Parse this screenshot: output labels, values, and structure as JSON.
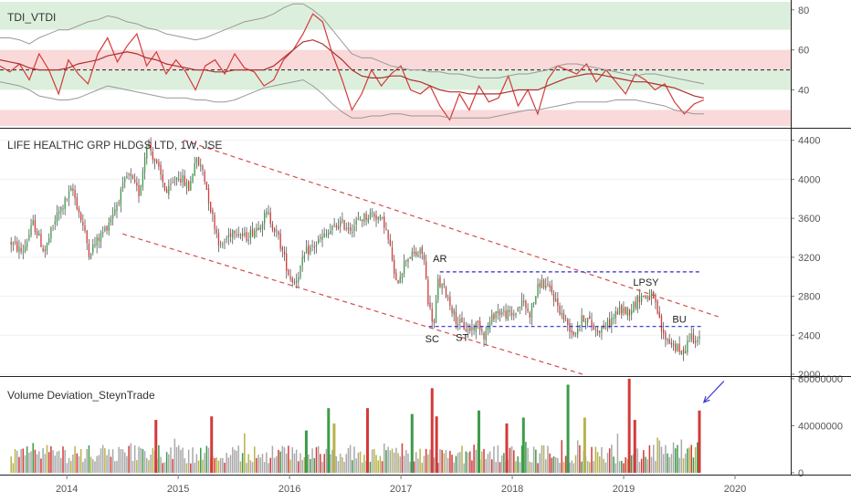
{
  "colors": {
    "red": "#d43a3a",
    "green": "#3e9b4a",
    "olive": "#b7b34a",
    "gray_bar": "#a9a9a9",
    "green_band": "#dcefdc",
    "red_band": "#f9d9d9",
    "channel": "#d0504c",
    "level": "#2b2bcc",
    "arrow": "#3a3acc"
  },
  "chart_data": [
    {
      "type": "line",
      "title": "TDI_VTDI",
      "ylim": [
        22,
        84
      ],
      "yticks": [
        "80",
        "60",
        "40"
      ],
      "bands": [
        {
          "from": 70,
          "to": 84,
          "color": "green"
        },
        {
          "from": 50,
          "to": 60,
          "color": "red"
        },
        {
          "from": 40,
          "to": 50,
          "color": "green"
        },
        {
          "from": 22,
          "to": 30,
          "color": "red"
        }
      ],
      "midline": 50,
      "series": [
        {
          "values": [
            52,
            49,
            53,
            45,
            58,
            50,
            38,
            55,
            48,
            43,
            58,
            66,
            54,
            62,
            68,
            52,
            59,
            48,
            55,
            49,
            40,
            52,
            55,
            48,
            58,
            51,
            49,
            42,
            45,
            55,
            60,
            68,
            78,
            74,
            58,
            45,
            30,
            38,
            50,
            42,
            48,
            52,
            40,
            38,
            42,
            32,
            25,
            38,
            30,
            42,
            34,
            36,
            47,
            32,
            40,
            28,
            45,
            52,
            50,
            48,
            53,
            44,
            50,
            44,
            38,
            48,
            45,
            40,
            43,
            34,
            28,
            33,
            35
          ]
        },
        {
          "values": [
            55,
            54,
            53,
            51,
            50,
            50,
            50,
            51,
            53,
            54,
            55,
            57,
            58,
            59,
            58,
            56,
            55,
            53,
            52,
            51,
            50,
            50,
            49,
            49,
            50,
            50,
            50,
            50,
            52,
            56,
            60,
            64,
            65,
            63,
            59,
            55,
            50,
            47,
            46,
            46,
            47,
            47,
            45,
            44,
            42,
            40,
            39,
            39,
            38,
            38,
            38,
            38,
            39,
            40,
            40,
            40,
            42,
            44,
            46,
            47,
            48,
            48,
            47,
            46,
            45,
            44,
            44,
            43,
            42,
            41,
            39,
            37,
            36
          ]
        },
        {
          "values": [
            66,
            66,
            65,
            63,
            66,
            68,
            70,
            70,
            72,
            74,
            75,
            77,
            76,
            74,
            73,
            71,
            70,
            68,
            67,
            66,
            65,
            66,
            68,
            70,
            72,
            74,
            75,
            76,
            78,
            81,
            83,
            83,
            80,
            76,
            70,
            64,
            58,
            56,
            56,
            54,
            52,
            51,
            50,
            50,
            49,
            49,
            48,
            48,
            47,
            46,
            46,
            46,
            47,
            48,
            48,
            49,
            50,
            52,
            53,
            53,
            52,
            51,
            50,
            49,
            48,
            47,
            48,
            48,
            47,
            46,
            45,
            44,
            43
          ]
        },
        {
          "values": [
            44,
            43,
            42,
            40,
            37,
            36,
            35,
            35,
            36,
            38,
            40,
            42,
            41,
            40,
            39,
            38,
            37,
            36,
            36,
            36,
            35,
            35,
            34,
            34,
            35,
            37,
            39,
            41,
            42,
            43,
            44,
            45,
            42,
            38,
            33,
            29,
            26,
            26,
            27,
            27,
            28,
            28,
            27,
            27,
            27,
            27,
            26,
            26,
            26,
            26,
            26,
            27,
            28,
            29,
            30,
            30,
            31,
            32,
            33,
            34,
            34,
            34,
            34,
            35,
            35,
            35,
            34,
            33,
            32,
            30,
            29,
            28,
            28
          ]
        }
      ]
    },
    {
      "type": "candlestick",
      "title": "LIFE HEALTHC GRP HLDGS LTD, 1W, JSE",
      "ylim": [
        2000,
        4500
      ],
      "yticks": [
        "4400",
        "4000",
        "3600",
        "3200",
        "2800",
        "2400",
        "2000"
      ],
      "weeks": 346,
      "keypoints": [
        [
          2013.5,
          3350
        ],
        [
          2013.6,
          3250
        ],
        [
          2013.7,
          3550
        ],
        [
          2013.8,
          3250
        ],
        [
          2013.9,
          3600
        ],
        [
          2014.05,
          3900
        ],
        [
          2014.15,
          3500
        ],
        [
          2014.2,
          3250
        ],
        [
          2014.35,
          3500
        ],
        [
          2014.45,
          3750
        ],
        [
          2014.55,
          4050
        ],
        [
          2014.65,
          3850
        ],
        [
          2014.72,
          4400
        ],
        [
          2014.82,
          4100
        ],
        [
          2014.9,
          3850
        ],
        [
          2015.0,
          4050
        ],
        [
          2015.1,
          3900
        ],
        [
          2015.15,
          4200
        ],
        [
          2015.22,
          4100
        ],
        [
          2015.3,
          3650
        ],
        [
          2015.38,
          3300
        ],
        [
          2015.5,
          3500
        ],
        [
          2015.6,
          3400
        ],
        [
          2015.7,
          3500
        ],
        [
          2015.8,
          3650
        ],
        [
          2015.9,
          3400
        ],
        [
          2016.0,
          3000
        ],
        [
          2016.05,
          2950
        ],
        [
          2016.15,
          3250
        ],
        [
          2016.3,
          3400
        ],
        [
          2016.45,
          3550
        ],
        [
          2016.55,
          3500
        ],
        [
          2016.65,
          3600
        ],
        [
          2016.75,
          3650
        ],
        [
          2016.85,
          3550
        ],
        [
          2016.92,
          3200
        ],
        [
          2016.95,
          2900
        ],
        [
          2017.05,
          3200
        ],
        [
          2017.2,
          3250
        ],
        [
          2017.25,
          2700
        ],
        [
          2017.3,
          2500
        ],
        [
          2017.33,
          2950
        ],
        [
          2017.4,
          2850
        ],
        [
          2017.5,
          2550
        ],
        [
          2017.6,
          2450
        ],
        [
          2017.7,
          2520
        ],
        [
          2017.75,
          2400
        ],
        [
          2017.85,
          2650
        ],
        [
          2018.0,
          2600
        ],
        [
          2018.1,
          2750
        ],
        [
          2018.15,
          2600
        ],
        [
          2018.25,
          2950
        ],
        [
          2018.35,
          2850
        ],
        [
          2018.45,
          2600
        ],
        [
          2018.55,
          2420
        ],
        [
          2018.65,
          2600
        ],
        [
          2018.75,
          2450
        ],
        [
          2018.85,
          2500
        ],
        [
          2018.95,
          2650
        ],
        [
          2019.05,
          2650
        ],
        [
          2019.15,
          2800
        ],
        [
          2019.25,
          2800
        ],
        [
          2019.3,
          2650
        ],
        [
          2019.35,
          2400
        ],
        [
          2019.45,
          2300
        ],
        [
          2019.52,
          2200
        ],
        [
          2019.6,
          2400
        ],
        [
          2019.68,
          2350
        ]
      ],
      "channel": [
        {
          "from": [
            2015.05,
            4400
          ],
          "to": [
            2019.85,
            2590
          ]
        },
        {
          "from": [
            2014.5,
            3440
          ],
          "to": [
            2018.63,
            2000
          ]
        }
      ],
      "levels": [
        {
          "price": 3050,
          "x": [
            2017.35,
            2019.7
          ]
        },
        {
          "price": 2490,
          "x": [
            2017.25,
            2019.7
          ]
        }
      ],
      "annotations": [
        {
          "text": "AR",
          "x": 2017.35,
          "y": 3150
        },
        {
          "text": "SC",
          "x": 2017.28,
          "y": 2330
        },
        {
          "text": "ST",
          "x": 2017.55,
          "y": 2340
        },
        {
          "text": "LPSY",
          "x": 2019.2,
          "y": 2910
        },
        {
          "text": "BU",
          "x": 2019.5,
          "y": 2530
        }
      ],
      "x_range": [
        2013.4,
        2020.5
      ]
    },
    {
      "type": "bar",
      "title": "Volume Deviation_SteynTrade",
      "ylim": [
        0,
        80000000
      ],
      "yticks": [
        "80000000",
        "40000000",
        "0"
      ],
      "highlights": [
        {
          "x": 2014.8,
          "value": 45000000,
          "color": "red"
        },
        {
          "x": 2015.3,
          "value": 48000000,
          "color": "red"
        },
        {
          "x": 2016.15,
          "value": 36000000,
          "color": "green"
        },
        {
          "x": 2016.35,
          "value": 55000000,
          "color": "green"
        },
        {
          "x": 2016.4,
          "value": 42000000,
          "color": "olive"
        },
        {
          "x": 2016.7,
          "value": 55000000,
          "color": "red"
        },
        {
          "x": 2017.1,
          "value": 50000000,
          "color": "green"
        },
        {
          "x": 2017.28,
          "value": 72000000,
          "color": "red"
        },
        {
          "x": 2017.32,
          "value": 48000000,
          "color": "red"
        },
        {
          "x": 2017.7,
          "value": 53000000,
          "color": "green"
        },
        {
          "x": 2017.95,
          "value": 42000000,
          "color": "red"
        },
        {
          "x": 2018.1,
          "value": 47000000,
          "color": "green"
        },
        {
          "x": 2018.5,
          "value": 75000000,
          "color": "green"
        },
        {
          "x": 2018.65,
          "value": 47000000,
          "color": "olive"
        },
        {
          "x": 2019.05,
          "value": 82000000,
          "color": "red"
        },
        {
          "x": 2019.1,
          "value": 45000000,
          "color": "red"
        },
        {
          "x": 2019.68,
          "value": 53000000,
          "color": "red"
        }
      ],
      "arrow": {
        "from": [
          2019.9,
          78000000
        ],
        "to": [
          2019.72,
          60000000
        ]
      }
    }
  ],
  "xaxis": {
    "ticks": [
      {
        "label": "2014",
        "x": 2014
      },
      {
        "label": "2015",
        "x": 2015
      },
      {
        "label": "2016",
        "x": 2016
      },
      {
        "label": "2017",
        "x": 2017
      },
      {
        "label": "2018",
        "x": 2018
      },
      {
        "label": "2019",
        "x": 2019
      },
      {
        "label": "2020",
        "x": 2020
      }
    ]
  }
}
